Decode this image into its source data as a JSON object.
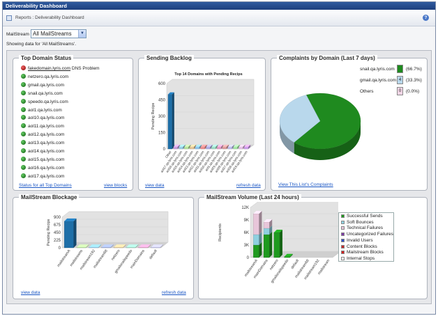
{
  "window": {
    "title": "Deliverability Dashboard"
  },
  "breadcrumb": "Reports : Deliverability Dashboard",
  "filter": {
    "label": "MailStream",
    "selected": "All MailStreams",
    "showing": "Showing data for 'All MailStreams'."
  },
  "top_domain": {
    "title": "Top Domain Status",
    "items": [
      {
        "name": "fakedomain.lyris.com",
        "status": "DNS Problem",
        "color": "red"
      },
      {
        "name": "netzero.qa.lyris.com",
        "status": "",
        "color": "green"
      },
      {
        "name": "gmail.qa.lyris.com",
        "status": "",
        "color": "green"
      },
      {
        "name": "snail.qa.lyris.com",
        "status": "",
        "color": "green"
      },
      {
        "name": "speedo.qa.lyris.com",
        "status": "",
        "color": "green"
      },
      {
        "name": "aol1.qa.lyris.com",
        "status": "",
        "color": "green"
      },
      {
        "name": "aol10.qa.lyris.com",
        "status": "",
        "color": "green"
      },
      {
        "name": "aol11.qa.lyris.com",
        "status": "",
        "color": "green"
      },
      {
        "name": "aol12.qa.lyris.com",
        "status": "",
        "color": "green"
      },
      {
        "name": "aol13.qa.lyris.com",
        "status": "",
        "color": "green"
      },
      {
        "name": "aol14.qa.lyris.com",
        "status": "",
        "color": "green"
      },
      {
        "name": "aol15.qa.lyris.com",
        "status": "",
        "color": "green"
      },
      {
        "name": "aol16.qa.lyris.com",
        "status": "",
        "color": "green"
      },
      {
        "name": "aol17.qa.lyris.com",
        "status": "",
        "color": "green"
      }
    ],
    "link_all": "Status for all Top Domains",
    "link_blocks": "view blocks"
  },
  "backlog": {
    "title": "Sending Backlog",
    "link_view": "view data",
    "link_refresh": "refresh data"
  },
  "complaints": {
    "title": "Complaints by Domain (Last 7 days)",
    "link": "View This List's Complaints",
    "legend": [
      {
        "name": "snail.qa.lyris.com",
        "count": "",
        "pct": "(66.7%)",
        "color": "#1f8a1f"
      },
      {
        "name": "gmail.qa.lyris.com",
        "count": "4",
        "pct": "(33.3%)",
        "color": "#b9d8ec"
      },
      {
        "name": "Others",
        "count": "0",
        "pct": "(0.0%)",
        "color": "#f2d6e6"
      }
    ]
  },
  "blockage": {
    "title": "MailStream Blockage",
    "link_view": "view data",
    "link_refresh": "refresh data"
  },
  "volume": {
    "title": "MailStream Volume (Last 24 hours)",
    "legend": [
      {
        "name": "Successful Sends",
        "color": "#1f9a1f"
      },
      {
        "name": "Soft Bounces",
        "color": "#8fd0e0"
      },
      {
        "name": "Technical Failures",
        "color": "#e8c6da"
      },
      {
        "name": "Uncategorized Failures",
        "color": "#7d3aa6"
      },
      {
        "name": "Invalid Users",
        "color": "#3050c8"
      },
      {
        "name": "Content Blocks",
        "color": "#c42a2a"
      },
      {
        "name": "Mailstream Blocks",
        "color": "#d02020"
      },
      {
        "name": "Internal Stops",
        "color": "#ffffff"
      }
    ]
  },
  "chart_data": [
    {
      "id": "backlog",
      "type": "bar",
      "title": "Top 14 Domains with Pending Recips",
      "ylabel": "Pending Recips",
      "ylim": [
        0,
        600
      ],
      "yticks": [
        "600",
        "450",
        "300",
        "150",
        "0"
      ],
      "categories": [
        "Other",
        "aol17.qa.lyris.com",
        "aol16.qa.lyris.com",
        "aol15.qa.lyris.com",
        "aol14.qa.lyris.com",
        "aol13.qa.lyris.com",
        "aol12.qa.lyris.com",
        "aol11.qa.lyris.com",
        "aol10.qa.lyris.com",
        "aol1.qa.lyris.com",
        "aol29.qa.lyris.com",
        "aol28.qa.lyris.com",
        "aol27.qa.lyris.com",
        "aol26.qa.lyris.com",
        "aol19.qa.lyris.com"
      ],
      "values": [
        500,
        20,
        20,
        20,
        20,
        20,
        20,
        20,
        20,
        20,
        20,
        20,
        20,
        20,
        20
      ],
      "colors": [
        "#1e6fa8",
        "#c8a0e0",
        "#9ad0e6",
        "#b8e6a0",
        "#e6c89a",
        "#90c8f0",
        "#f09090",
        "#b0b0e8",
        "#a0e0c8",
        "#e8a0c8",
        "#e0a0a0",
        "#c0c0f0",
        "#a8e8a8",
        "#e8c0e8",
        "#d0a0f0"
      ]
    },
    {
      "id": "complaints",
      "type": "pie",
      "categories": [
        "snail.qa.lyris.com",
        "gmail.qa.lyris.com",
        "Others"
      ],
      "values": [
        66.7,
        33.3,
        0.0
      ],
      "colors": [
        "#1f8a1f",
        "#b9d8ec",
        "#f2d6e6"
      ]
    },
    {
      "id": "blockage",
      "type": "bar",
      "ylabel": "Pending Recips",
      "ylim": [
        0,
        900
      ],
      "yticks": [
        "900",
        "675",
        "450",
        "225",
        "0"
      ],
      "categories": [
        "mailstreamA",
        "mailstreams",
        "mailstream192",
        "mailstream68",
        "netzero",
        "gmailsnailspeedo",
        "mainDomains",
        "default"
      ],
      "values": [
        780,
        15,
        15,
        15,
        15,
        15,
        15,
        15
      ],
      "colors": [
        "#1e6fa8",
        "#b8e6a0",
        "#90c8f0",
        "#a0b0e0",
        "#e6c89a",
        "#a0e0c8",
        "#e8a0c8",
        "#c0c0f0"
      ]
    },
    {
      "id": "volume",
      "type": "bar",
      "ylabel": "Recipients",
      "ylim": [
        0,
        12000
      ],
      "yticks": [
        "12K",
        "9K",
        "6K",
        "3K",
        "0"
      ],
      "categories": [
        "mailstreamA",
        "mainDomains",
        "netzero",
        "gmailsnailspeedo",
        "default",
        "mailstream68",
        "mailstream192",
        "mailstream"
      ],
      "series": [
        {
          "name": "Successful Sends",
          "values": [
            3000,
            5500,
            6000,
            200,
            0,
            0,
            0,
            0
          ]
        },
        {
          "name": "Soft Bounces",
          "values": [
            2500,
            1500,
            0,
            0,
            0,
            0,
            0,
            0
          ]
        },
        {
          "name": "Technical Failures",
          "values": [
            5000,
            1500,
            0,
            0,
            0,
            0,
            0,
            0
          ]
        },
        {
          "name": "Uncategorized Failures",
          "values": [
            0,
            0,
            0,
            0,
            0,
            0,
            0,
            0
          ]
        },
        {
          "name": "Invalid Users",
          "values": [
            0,
            0,
            0,
            0,
            0,
            0,
            0,
            0
          ]
        },
        {
          "name": "Content Blocks",
          "values": [
            0,
            0,
            0,
            0,
            0,
            0,
            0,
            0
          ]
        },
        {
          "name": "Mailstream Blocks",
          "values": [
            0,
            0,
            0,
            0,
            0,
            0,
            0,
            0
          ]
        },
        {
          "name": "Internal Stops",
          "values": [
            0,
            0,
            0,
            0,
            0,
            0,
            0,
            0
          ]
        }
      ]
    }
  ]
}
